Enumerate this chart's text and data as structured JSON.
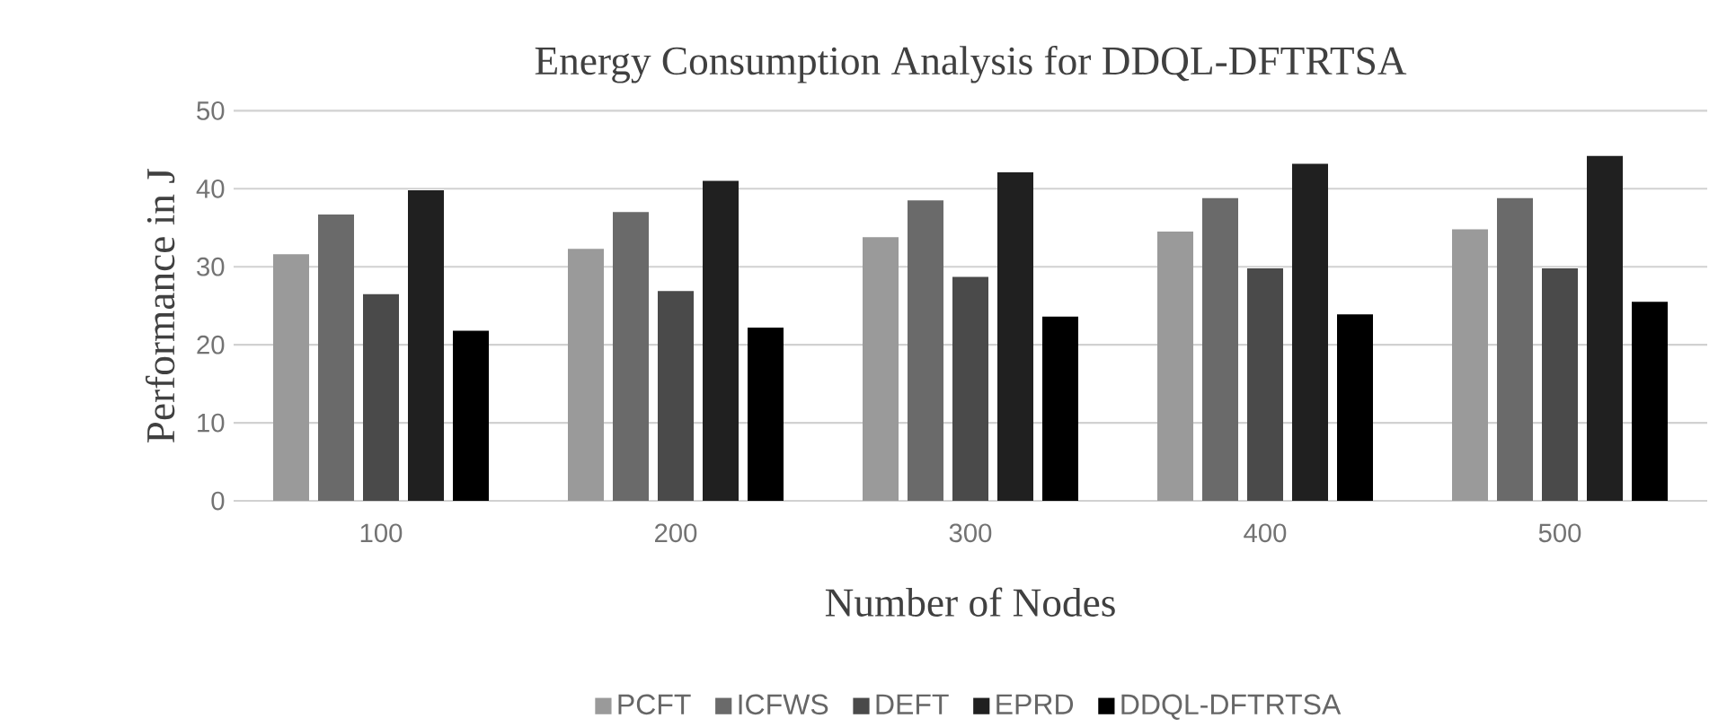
{
  "chart_data": {
    "type": "bar",
    "title": "Energy Consumption Analysis for DDQL-DFTRTSA",
    "xlabel": "Number of Nodes",
    "ylabel": "Performance in J",
    "categories": [
      "100",
      "200",
      "300",
      "400",
      "500"
    ],
    "series": [
      {
        "name": "PCFT",
        "color": "#9a9a9a",
        "values": [
          31.6,
          32.3,
          33.8,
          34.5,
          34.8
        ]
      },
      {
        "name": "ICFWS",
        "color": "#6a6a6a",
        "values": [
          36.7,
          37.0,
          38.5,
          38.8,
          38.8
        ]
      },
      {
        "name": "DEFT",
        "color": "#4a4a4a",
        "values": [
          26.5,
          26.9,
          28.7,
          29.8,
          29.8
        ]
      },
      {
        "name": "EPRD",
        "color": "#202020",
        "values": [
          39.8,
          41.0,
          42.1,
          43.2,
          44.2
        ]
      },
      {
        "name": "DDQL-DFTRTSA",
        "color": "#000000",
        "values": [
          21.8,
          22.2,
          23.6,
          23.9,
          25.5
        ]
      }
    ],
    "ylim": [
      0,
      50
    ],
    "yticks": [
      0,
      10,
      20,
      30,
      40,
      50
    ],
    "grid": "y",
    "legend": "bottom"
  }
}
